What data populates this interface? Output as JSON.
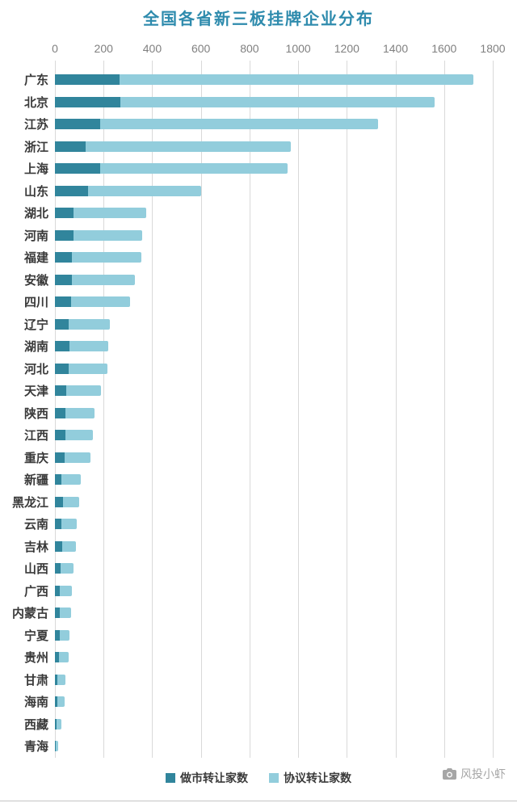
{
  "page": {
    "watermark": "风投小虾"
  },
  "colors": {
    "title": "#2E8BAD",
    "market": "#31859C",
    "agreement": "#92CDDC",
    "gridline": "#D9D9D9",
    "axis_text": "#808080",
    "category_text": "#3A3A3A",
    "watermark_text": "#A6A6A6"
  },
  "chart_data": {
    "type": "bar",
    "orientation": "horizontal",
    "stacked": true,
    "title": "全国各省新三板挂牌企业分布",
    "xlabel": "",
    "ylabel": "",
    "axis_position": "top",
    "grid": true,
    "legend_position": "bottom",
    "xlim": [
      0,
      1800
    ],
    "x_ticks": [
      0,
      200,
      400,
      600,
      800,
      1000,
      1200,
      1400,
      1600,
      1800
    ],
    "categories": [
      "广东",
      "北京",
      "江苏",
      "浙江",
      "上海",
      "山东",
      "湖北",
      "河南",
      "福建",
      "安徽",
      "四川",
      "辽宁",
      "湖南",
      "河北",
      "天津",
      "陕西",
      "江西",
      "重庆",
      "新疆",
      "黑龙江",
      "云南",
      "吉林",
      "山西",
      "广西",
      "内蒙古",
      "宁夏",
      "贵州",
      "甘肃",
      "海南",
      "西藏",
      "青海"
    ],
    "series": [
      {
        "name": "做市转让家数",
        "values": [
          265,
          270,
          185,
          125,
          185,
          135,
          75,
          75,
          70,
          70,
          65,
          55,
          60,
          55,
          45,
          42,
          42,
          40,
          28,
          33,
          27,
          30,
          23,
          20,
          20,
          20,
          17,
          10,
          10,
          7,
          3
        ]
      },
      {
        "name": "协议转让家数",
        "values": [
          1455,
          1290,
          1145,
          845,
          770,
          465,
          300,
          285,
          285,
          260,
          245,
          170,
          160,
          160,
          145,
          120,
          113,
          105,
          77,
          67,
          63,
          55,
          52,
          50,
          45,
          40,
          38,
          32,
          30,
          19,
          9
        ]
      }
    ]
  }
}
